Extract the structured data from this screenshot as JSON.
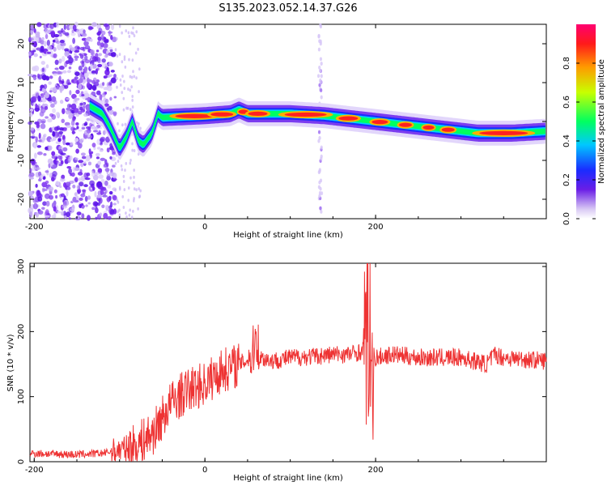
{
  "title": "S135.2023.052.14.37.G26",
  "chart_data": [
    {
      "type": "heatmap",
      "xlabel": "Height of straight line (km)",
      "ylabel": "Frequency (Hz)",
      "xlim": [
        -205,
        400
      ],
      "ylim": [
        -25,
        25
      ],
      "x_ticks": [
        -200,
        0,
        200
      ],
      "y_ticks": [
        -20,
        -10,
        0,
        10,
        20
      ],
      "colorbar": {
        "label": "Normalized spectral amplitude",
        "range": [
          0,
          1
        ],
        "ticks": [
          "0.0",
          "0.2",
          "0.4",
          "0.6",
          "0.8"
        ]
      },
      "ridge": {
        "x": [
          -135,
          -120,
          -110,
          -100,
          -92,
          -85,
          -78,
          -72,
          -62,
          -55,
          -50,
          0,
          30,
          40,
          50,
          100,
          140,
          160,
          200,
          240,
          280,
          320,
          360,
          400
        ],
        "y": [
          4,
          2,
          -2,
          -7,
          -4,
          0,
          -5,
          -6,
          -3,
          2,
          1,
          1.5,
          2,
          3,
          2,
          2,
          1.5,
          1,
          0,
          -1,
          -2,
          -3,
          -3,
          -2.5
        ]
      },
      "noise_region_x": [
        -205,
        -105
      ],
      "vertical_streak_x": 135
    },
    {
      "type": "line",
      "xlabel": "Height of straight line (km)",
      "ylabel": "SNR (10 * v/v)",
      "xlim": [
        -205,
        400
      ],
      "ylim": [
        0,
        305
      ],
      "x_ticks": [
        -200,
        0,
        200
      ],
      "y_ticks": [
        0,
        100,
        200,
        300
      ],
      "color": "#ee3333",
      "series": [
        {
          "name": "",
          "x": [
            -205,
            -180,
            -150,
            -120,
            -100,
            -80,
            -60,
            -40,
            -20,
            0,
            20,
            40,
            55,
            60,
            65,
            80,
            100,
            130,
            150,
            170,
            185,
            190,
            195,
            200,
            220,
            250,
            300,
            330,
            340,
            350,
            400
          ],
          "y": [
            13,
            12,
            11,
            13,
            18,
            25,
            45,
            90,
            110,
            120,
            140,
            150,
            160,
            195,
            160,
            155,
            160,
            162,
            165,
            165,
            170,
            290,
            170,
            160,
            165,
            160,
            160,
            150,
            165,
            160,
            155
          ]
        }
      ]
    }
  ]
}
